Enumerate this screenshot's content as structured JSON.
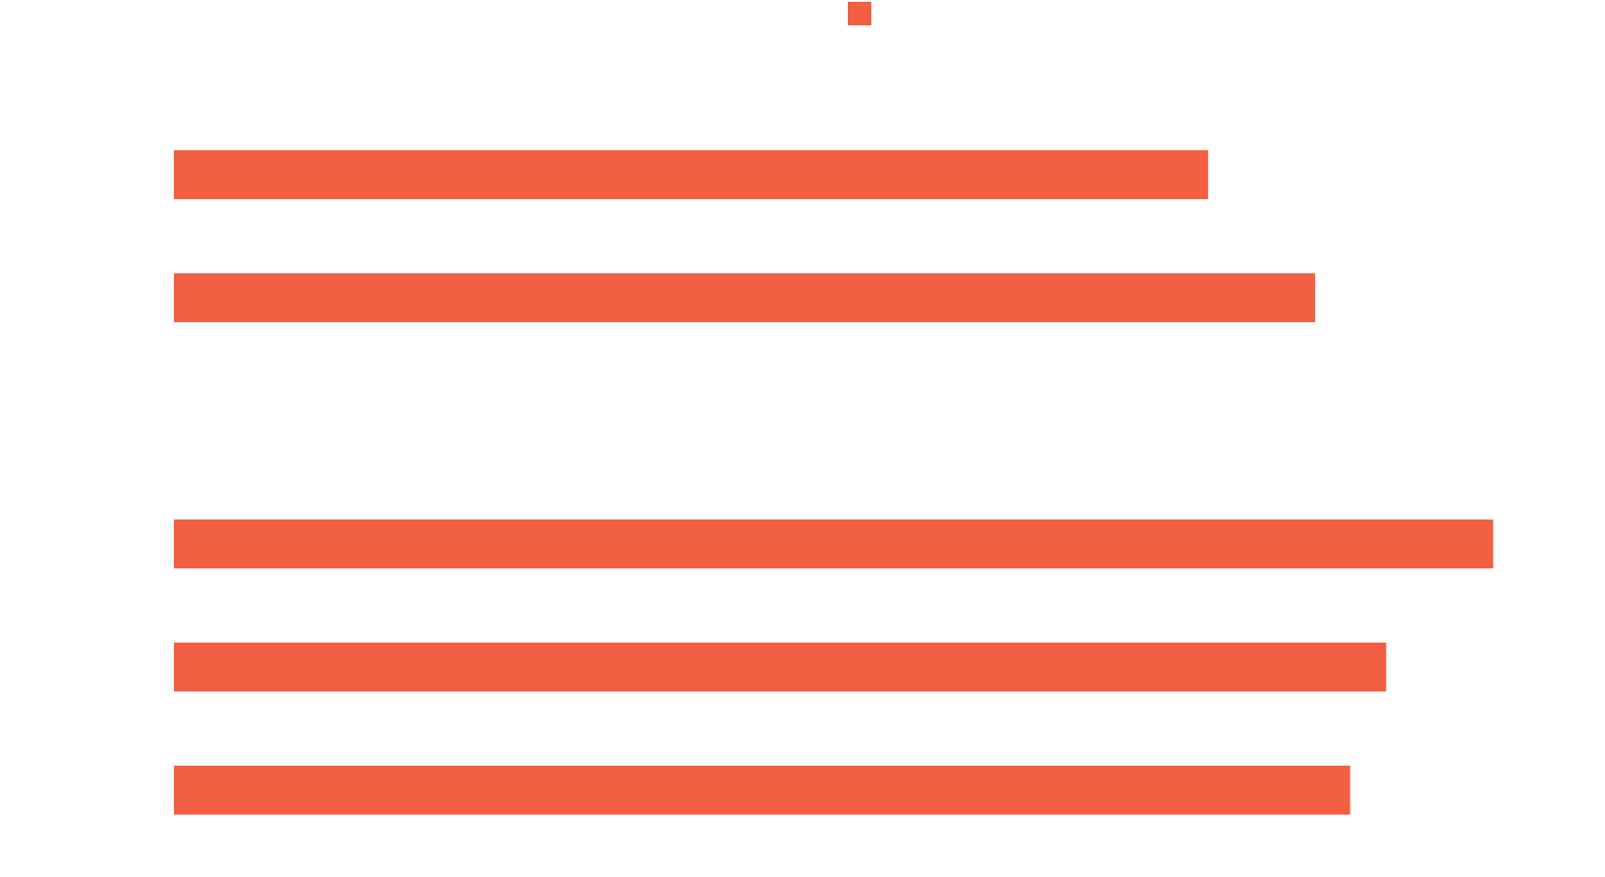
{
  "chart_data": {
    "type": "barh",
    "categories": [
      null,
      null,
      null,
      null,
      null,
      null
    ],
    "values": [
      1005,
      1109,
      null,
      1282,
      1178,
      1143
    ],
    "color": "#f25f42",
    "xlim": [
      0,
      1300
    ]
  }
}
